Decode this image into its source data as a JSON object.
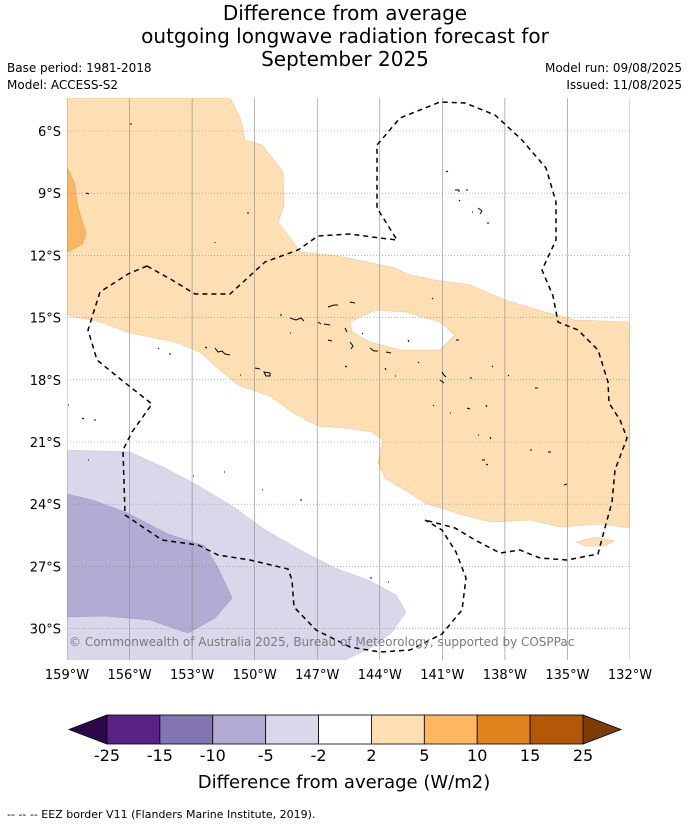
{
  "title": {
    "line1": "Difference from average",
    "line2": "outgoing longwave radiation forecast for",
    "line3": "September 2025"
  },
  "meta": {
    "base_period": "Base period: 1981-2018",
    "model": "Model: ACCESS-S2",
    "model_run": "Model run: 09/08/2025",
    "issued": "Issued: 11/08/2025"
  },
  "map": {
    "lon_labels": [
      "159°W",
      "156°W",
      "153°W",
      "150°W",
      "147°W",
      "144°W",
      "141°W",
      "138°W",
      "135°W",
      "132°W"
    ],
    "lat_labels": [
      "6°S",
      "9°S",
      "12°S",
      "15°S",
      "18°S",
      "21°S",
      "24°S",
      "27°S",
      "30°S"
    ],
    "copyright": "© Commonwealth of Australia 2025, Bureau of Meteorology, supported by COSPPac"
  },
  "colorbar": {
    "ticks": [
      "-25",
      "-15",
      "-10",
      "-5",
      "-2",
      "2",
      "5",
      "10",
      "15",
      "25"
    ],
    "colors": [
      "#5a2287",
      "#8275b2",
      "#b2acd4",
      "#d8d8ea",
      "#ffffff",
      "#fddfb3",
      "#fdb761",
      "#e0821b",
      "#b35806"
    ],
    "end_low": "#2c0a4a",
    "end_high": "#7f3b08",
    "label": "Difference from average (W/m2)"
  },
  "footer": "-- -- -- EEZ border V11 (Flanders Marine Institute, 2019)."
}
